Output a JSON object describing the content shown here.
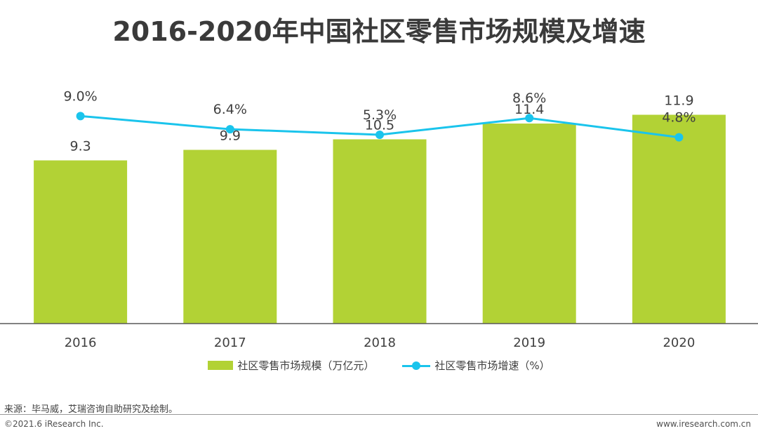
{
  "colors": {
    "bar": "#b2d235",
    "line": "#1ac4ec",
    "axis": "#595959",
    "text": "#404040"
  },
  "chart_data": {
    "type": "bar",
    "title": "2016-2020年中国社区零售市场规模及增速",
    "categories": [
      "2016",
      "2017",
      "2018",
      "2019",
      "2020"
    ],
    "series": [
      {
        "name": "社区零售市场规模（万亿元）",
        "type": "bar",
        "values": [
          9.3,
          9.9,
          10.5,
          11.4,
          11.9
        ],
        "labels": [
          "9.3",
          "9.9",
          "10.5",
          "11.4",
          "11.9"
        ]
      },
      {
        "name": "社区零售市场增速（%）",
        "type": "line",
        "values": [
          9.0,
          6.4,
          5.3,
          8.6,
          4.8
        ],
        "labels": [
          "9.0%",
          "6.4%",
          "5.3%",
          "8.6%",
          "4.8%"
        ]
      }
    ],
    "bar_axis": {
      "min": 0,
      "max": 15
    },
    "line_axis": {
      "min": -32,
      "max": 20
    },
    "legend_position": "bottom"
  },
  "footer": {
    "source": "来源：毕马威，艾瑞咨询自助研究及绘制。",
    "copyright": "©2021.6 iResearch Inc.",
    "website": "www.iresearch.com.cn"
  }
}
